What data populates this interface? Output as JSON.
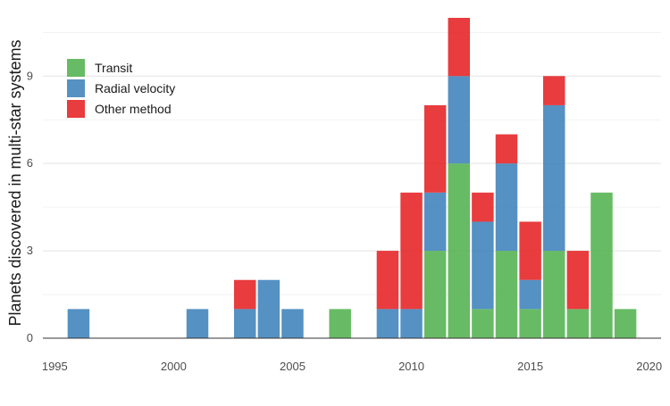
{
  "chart_data": {
    "type": "bar",
    "stacked": true,
    "title": "",
    "xlabel": "",
    "ylabel": "Planets discovered in multi-star systems",
    "xlim": [
      1994.5,
      2020.5
    ],
    "ylim": [
      0,
      11
    ],
    "x_ticks": [
      1995,
      2000,
      2005,
      2010,
      2015,
      2020
    ],
    "y_ticks": [
      0,
      3,
      6,
      9
    ],
    "grid": true,
    "legend_position": "top-left",
    "x": [
      1996,
      2001,
      2003,
      2004,
      2005,
      2007,
      2009,
      2010,
      2011,
      2012,
      2013,
      2014,
      2015,
      2016,
      2017,
      2018,
      2019
    ],
    "series": [
      {
        "name": "Transit",
        "color": "#4daf4a",
        "values": [
          0,
          0,
          0,
          0,
          0,
          1,
          0,
          0,
          3,
          6,
          1,
          3,
          1,
          3,
          1,
          5,
          1
        ]
      },
      {
        "name": "Radial velocity",
        "color": "#377eb8",
        "values": [
          1,
          1,
          1,
          2,
          1,
          0,
          1,
          1,
          2,
          3,
          3,
          3,
          1,
          5,
          0,
          0,
          0
        ]
      },
      {
        "name": "Other method",
        "color": "#e41a1c",
        "values": [
          0,
          0,
          1,
          0,
          0,
          0,
          2,
          4,
          3,
          2,
          1,
          1,
          2,
          1,
          2,
          0,
          0
        ]
      }
    ]
  }
}
